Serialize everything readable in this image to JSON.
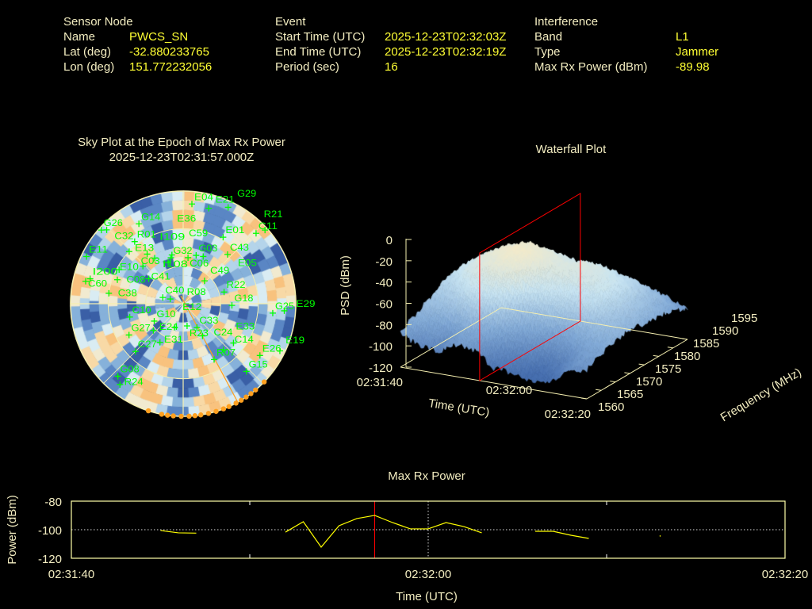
{
  "header": {
    "sensor": {
      "title": "Sensor Node",
      "name_label": "Name",
      "name": "PWCS_SN",
      "lat_label": "Lat (deg)",
      "lat": "-32.880233765",
      "lon_label": "Lon (deg)",
      "lon": "151.772232056"
    },
    "event": {
      "title": "Event",
      "start_label": "Start Time (UTC)",
      "start": "2025-12-23T02:32:03Z",
      "end_label": "End Time (UTC)",
      "end": "2025-12-23T02:32:19Z",
      "period_label": "Period (sec)",
      "period": "16"
    },
    "interference": {
      "title": "Interference",
      "band_label": "Band",
      "band": "L1",
      "type_label": "Type",
      "type": "Jammer",
      "power_label": "Max Rx Power (dBm)",
      "power": "-89.98"
    }
  },
  "colors": {
    "label": "#f2ecc0",
    "value": "#ffff33",
    "sat": "#00ff00",
    "jammer": "#ffa020",
    "marker": "#ff0000",
    "line": "#ffff00"
  },
  "chart_data": [
    {
      "type": "heatmap",
      "title": "Sky Plot at the Epoch of Max Rx Power",
      "subtitle": "2025-12-23T02:31:57.000Z",
      "satellites": [
        {
          "id": "G26",
          "az": 312,
          "el": 2
        },
        {
          "id": "C32",
          "az": 314,
          "el": 5
        },
        {
          "id": "G14",
          "az": 331,
          "el": 17
        },
        {
          "id": "R01",
          "az": 322,
          "el": 27
        },
        {
          "id": "E11",
          "az": 296,
          "el": 4
        },
        {
          "id": "E13",
          "az": 314,
          "el": 30
        },
        {
          "id": "G32",
          "az": 345,
          "el": 52
        },
        {
          "id": "I108",
          "az": 328,
          "el": 47
        },
        {
          "id": "I109",
          "az": 324,
          "el": 41
        },
        {
          "id": "C59",
          "az": 347,
          "el": 50
        },
        {
          "id": "C06",
          "az": 340,
          "el": 55
        },
        {
          "id": "C03",
          "az": 313,
          "el": 46
        },
        {
          "id": "E10",
          "az": 298,
          "el": 32
        },
        {
          "id": "C41",
          "az": 306,
          "el": 56
        },
        {
          "id": "I200",
          "az": 285,
          "el": 13
        },
        {
          "id": "C60",
          "az": 283,
          "el": 10
        },
        {
          "id": "C08",
          "az": 290,
          "el": 34
        },
        {
          "id": "C38",
          "az": 278,
          "el": 30
        },
        {
          "id": "C10",
          "az": 256,
          "el": 46
        },
        {
          "id": "G10",
          "az": 239,
          "el": 63
        },
        {
          "id": "E24",
          "az": 228,
          "el": 58
        },
        {
          "id": "G27",
          "az": 240,
          "el": 40
        },
        {
          "id": "E31",
          "az": 211,
          "el": 54
        },
        {
          "id": "C27",
          "az": 225,
          "el": 36
        },
        {
          "id": "G08",
          "az": 222,
          "el": 12
        },
        {
          "id": "R24",
          "az": 218,
          "el": 8
        },
        {
          "id": "C40",
          "az": 287,
          "el": 73
        },
        {
          "id": "R08",
          "az": 290,
          "el": 79
        },
        {
          "id": "C33",
          "az": 150,
          "el": 68
        },
        {
          "id": "E12",
          "az": 200,
          "el": 70
        },
        {
          "id": "R23",
          "az": 170,
          "el": 72
        },
        {
          "id": "C24",
          "az": 149,
          "el": 60
        },
        {
          "id": "R07",
          "az": 151,
          "el": 39
        },
        {
          "id": "C14",
          "az": 139,
          "el": 41
        },
        {
          "id": "E33",
          "az": 128,
          "el": 39
        },
        {
          "id": "G15",
          "az": 137,
          "el": 16
        },
        {
          "id": "E26",
          "az": 124,
          "el": 16
        },
        {
          "id": "E19",
          "az": 116,
          "el": 4
        },
        {
          "id": "G25",
          "az": 96,
          "el": 18
        },
        {
          "id": "E29",
          "az": 94,
          "el": 9
        },
        {
          "id": "G18",
          "az": 92,
          "el": 51
        },
        {
          "id": "R22",
          "az": 74,
          "el": 56
        },
        {
          "id": "C49",
          "az": 43,
          "el": 65
        },
        {
          "id": "C43",
          "az": 42,
          "el": 37
        },
        {
          "id": "E01",
          "az": 31,
          "el": 28
        },
        {
          "id": "G03",
          "az": 15,
          "el": 50
        },
        {
          "id": "E36",
          "az": 6,
          "el": 53
        },
        {
          "id": "E05",
          "az": 23,
          "el": 49
        },
        {
          "id": "C11",
          "az": 46,
          "el": 9
        },
        {
          "id": "R21",
          "az": 48,
          "el": 2
        },
        {
          "id": "E04",
          "az": 5,
          "el": 10
        },
        {
          "id": "E21",
          "az": 15,
          "el": 11
        },
        {
          "id": "G29",
          "az": 25,
          "el": 5
        }
      ],
      "jammer_direction_az": 151,
      "jammer_edge_az": [
        134,
        140,
        143,
        146,
        149,
        152,
        156,
        159,
        163,
        167,
        171,
        174,
        177,
        181,
        185,
        188,
        191,
        198
      ]
    },
    {
      "type": "surface",
      "title": "Waterfall Plot",
      "xlabel": "Time (UTC)",
      "ylabel": "Frequency (MHz)",
      "zlabel": "PSD (dBm)",
      "time_ticks": [
        "02:31:40",
        "02:32:00",
        "02:32:20"
      ],
      "time_range_sec": [
        0,
        40
      ],
      "freq_ticks": [
        1560,
        1565,
        1570,
        1575,
        1580,
        1585,
        1590,
        1595
      ],
      "z_ticks": [
        0,
        -20,
        -40,
        -60,
        -80,
        -100,
        -120
      ],
      "zlim": [
        -120,
        0
      ],
      "marker_time_sec": 17,
      "grid_times_sec": [
        0,
        4,
        8,
        12,
        16,
        20,
        24,
        28,
        32,
        36,
        40
      ],
      "grid_freqs": [
        1560,
        1565,
        1570,
        1575,
        1580,
        1585,
        1590,
        1595
      ],
      "psd": [
        [
          -88,
          -95,
          -100,
          -90,
          -92,
          -105,
          -108,
          -112,
          -110,
          -95,
          -92
        ],
        [
          -80,
          -85,
          -90,
          -80,
          -85,
          -95,
          -100,
          -105,
          -100,
          -88,
          -85
        ],
        [
          -72,
          -70,
          -60,
          -55,
          -60,
          -80,
          -85,
          -88,
          -82,
          -78,
          -80
        ],
        [
          -65,
          -55,
          -45,
          -38,
          -40,
          -55,
          -60,
          -62,
          -60,
          -70,
          -78
        ],
        [
          -60,
          -48,
          -38,
          -32,
          -35,
          -45,
          -48,
          -50,
          -55,
          -68,
          -80
        ],
        [
          -62,
          -50,
          -40,
          -35,
          -40,
          -48,
          -45,
          -50,
          -58,
          -70,
          -82
        ],
        [
          -70,
          -60,
          -55,
          -50,
          -52,
          -55,
          -55,
          -60,
          -65,
          -75,
          -85
        ],
        [
          -85,
          -80,
          -75,
          -70,
          -72,
          -75,
          -74,
          -78,
          -80,
          -85,
          -92
        ]
      ]
    },
    {
      "type": "line",
      "title": "Max Rx Power",
      "xlabel": "Time (UTC)",
      "ylabel": "Power (dBm)",
      "x_ticks": [
        "02:31:40",
        "02:32:00",
        "02:32:20"
      ],
      "x_range_sec": [
        0,
        40
      ],
      "y_ticks": [
        -80,
        -100,
        -120
      ],
      "ylim": [
        -120,
        -80
      ],
      "marker_time_sec": 17,
      "segments": [
        [
          [
            5,
            -100.6
          ],
          [
            6,
            -102.2
          ],
          [
            7,
            -102.4
          ]
        ],
        [
          [
            12,
            -101.7
          ],
          [
            13,
            -94.4
          ],
          [
            14,
            -112.2
          ],
          [
            15,
            -97.2
          ],
          [
            16,
            -92.2
          ],
          [
            17,
            -89.98
          ],
          [
            18,
            -95.0
          ],
          [
            19,
            -99.4
          ],
          [
            20,
            -99.4
          ],
          [
            21,
            -95.0
          ],
          [
            22,
            -97.8
          ],
          [
            23,
            -102.2
          ]
        ],
        [
          [
            26,
            -101.1
          ],
          [
            27,
            -101.1
          ],
          [
            28,
            -103.9
          ],
          [
            29,
            -106.1
          ]
        ],
        [
          [
            33,
            -104.4
          ]
        ]
      ]
    }
  ]
}
